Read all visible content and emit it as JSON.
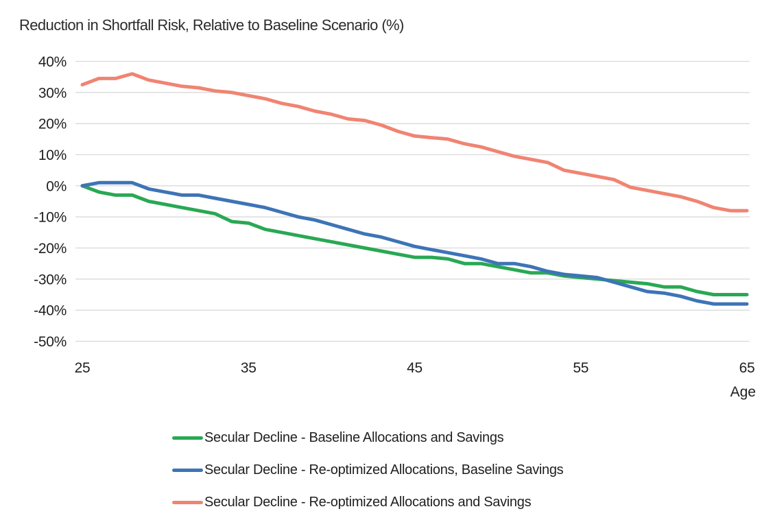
{
  "chart_data": {
    "type": "line",
    "title": "Reduction in Shortfall Risk, Relative to Baseline Scenario (%)",
    "xlabel": "Age",
    "ylabel": "",
    "ylim": [
      -50,
      40
    ],
    "grid": true,
    "legend_position": "bottom",
    "x": [
      25,
      26,
      27,
      28,
      29,
      30,
      31,
      32,
      33,
      34,
      35,
      36,
      37,
      38,
      39,
      40,
      41,
      42,
      43,
      44,
      45,
      46,
      47,
      48,
      49,
      50,
      51,
      52,
      53,
      54,
      55,
      56,
      57,
      58,
      59,
      60,
      61,
      62,
      63,
      64,
      65
    ],
    "x_tick_values": [
      25,
      35,
      45,
      55,
      65
    ],
    "x_tick_labels": [
      "25",
      "35",
      "45",
      "55",
      "65"
    ],
    "y_tick_values": [
      40,
      30,
      20,
      10,
      0,
      -10,
      -20,
      -30,
      -40,
      -50
    ],
    "y_tick_labels": [
      "40%",
      "30%",
      "20%",
      "10%",
      "0%",
      "-10%",
      "-20%",
      "-30%",
      "-40%",
      "-50%"
    ],
    "series": [
      {
        "name": "Secular Decline - Baseline Allocations and Savings",
        "color": "#29a853",
        "values": [
          0,
          -2,
          -3,
          -3,
          -5,
          -6,
          -7,
          -8,
          -9,
          -11.5,
          -12,
          -14,
          -15,
          -16,
          -17,
          -18,
          -19,
          -20,
          -21,
          -22,
          -23,
          -23,
          -23.5,
          -25,
          -25,
          -26,
          -27,
          -28,
          -28,
          -29,
          -29.5,
          -30,
          -30.5,
          -31,
          -31.5,
          -32.5,
          -32.5,
          -34,
          -35,
          -35,
          -35
        ]
      },
      {
        "name": "Secular Decline - Re-optimized Allocations, Baseline Savings",
        "color": "#3d74b6",
        "values": [
          0,
          1,
          1,
          1,
          -1,
          -2,
          -3,
          -3,
          -4,
          -5,
          -6,
          -7,
          -8.5,
          -10,
          -11,
          -12.5,
          -14,
          -15.5,
          -16.5,
          -18,
          -19.5,
          -20.5,
          -21.5,
          -22.5,
          -23.5,
          -25,
          -25,
          -26,
          -27.5,
          -28.5,
          -29,
          -29.5,
          -31,
          -32.5,
          -34,
          -34.5,
          -35.5,
          -37,
          -38,
          -38,
          -38
        ]
      },
      {
        "name": "Secular Decline - Re-optimized Allocations and Savings",
        "color": "#f08472",
        "values": [
          32.5,
          34.5,
          34.5,
          36,
          34,
          33,
          32,
          31.5,
          30.5,
          30,
          29,
          28,
          26.5,
          25.5,
          24,
          23,
          21.5,
          21,
          19.5,
          17.5,
          16,
          15.5,
          15,
          13.5,
          12.5,
          11,
          9.5,
          8.5,
          7.5,
          5,
          4,
          3,
          2,
          -0.5,
          -1.5,
          -2.5,
          -3.5,
          -5,
          -7,
          -8,
          -8
        ]
      }
    ],
    "gridline_color": "#d9d9d9",
    "text_color": "#1f1f1f"
  }
}
